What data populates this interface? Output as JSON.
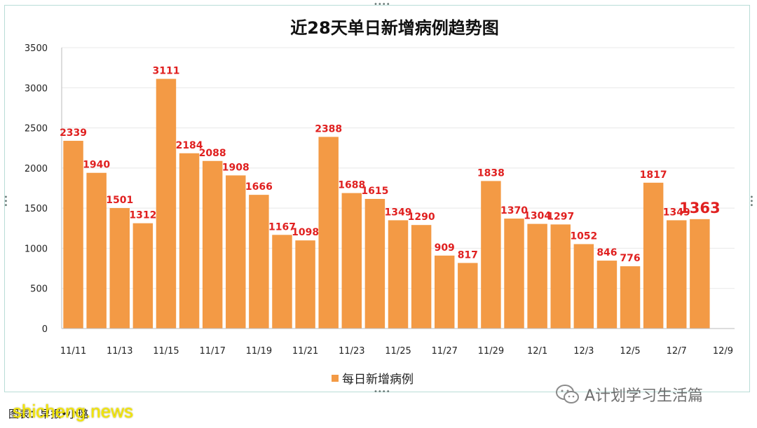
{
  "chart_data": {
    "type": "bar",
    "title": "近28天单日新增病例趋势图",
    "ylim": [
      0,
      3500
    ],
    "yticks": [
      0,
      500,
      1000,
      1500,
      2000,
      2500,
      3000,
      3500
    ],
    "grid": true,
    "legend_position": "bottom",
    "categories": [
      "11/11",
      "11/12",
      "11/13",
      "11/14",
      "11/15",
      "11/16",
      "11/17",
      "11/18",
      "11/19",
      "11/20",
      "11/21",
      "11/22",
      "11/23",
      "11/24",
      "11/25",
      "11/26",
      "11/27",
      "11/28",
      "11/29",
      "11/30",
      "12/1",
      "12/2",
      "12/3",
      "12/4",
      "12/5",
      "12/6",
      "12/7",
      "12/8"
    ],
    "x_tick_labels": [
      "11/11",
      "11/13",
      "11/15",
      "11/17",
      "11/19",
      "11/21",
      "11/23",
      "11/25",
      "11/27",
      "11/29",
      "12/1",
      "12/3",
      "12/5",
      "12/7",
      "12/9"
    ],
    "series": [
      {
        "name": "每日新增病例",
        "color": "#f39a45",
        "values": [
          2339,
          1940,
          1501,
          1312,
          3111,
          2184,
          2088,
          1908,
          1666,
          1167,
          1098,
          2388,
          1688,
          1615,
          1349,
          1290,
          909,
          817,
          1838,
          1370,
          1304,
          1297,
          1052,
          846,
          776,
          1817,
          1349,
          1363
        ]
      }
    ],
    "highlight_last": true,
    "label_color": "#e02020"
  },
  "caption": {
    "source_prefix": "图表：",
    "source_name": "早报",
    "separator": "•",
    "author": "小璐"
  },
  "watermarks": {
    "site": "shicheng.news",
    "account": "A计划学习生活篇"
  }
}
